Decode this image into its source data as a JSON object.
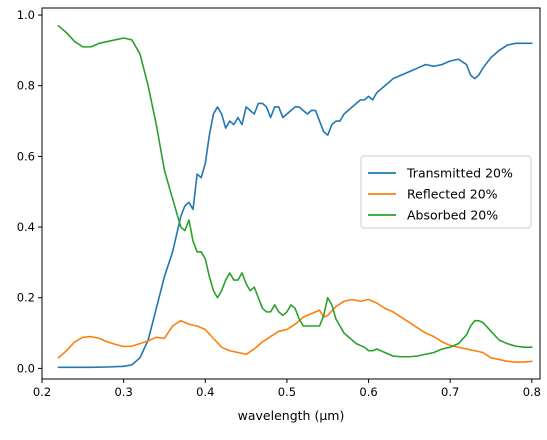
{
  "chart_data": {
    "type": "line",
    "title": "",
    "xlabel": "wavelength (μm)",
    "ylabel": "",
    "xlim": [
      0.2,
      0.81
    ],
    "ylim": [
      -0.03,
      1.02
    ],
    "xticks": [
      0.2,
      0.3,
      0.4,
      0.5,
      0.6,
      0.7,
      0.8
    ],
    "xtick_labels": [
      "0.2",
      "0.3",
      "0.4",
      "0.5",
      "0.6",
      "0.7",
      "0.8"
    ],
    "yticks": [
      0.0,
      0.2,
      0.4,
      0.6,
      0.8,
      1.0
    ],
    "ytick_labels": [
      "0.0",
      "0.2",
      "0.4",
      "0.6",
      "0.8",
      "1.0"
    ],
    "grid": false,
    "legend_position": "center-right",
    "series": [
      {
        "name": "Transmitted 20%",
        "color": "#1f77b4",
        "x": [
          0.22,
          0.24,
          0.26,
          0.28,
          0.3,
          0.31,
          0.32,
          0.33,
          0.34,
          0.35,
          0.36,
          0.37,
          0.375,
          0.38,
          0.385,
          0.39,
          0.395,
          0.4,
          0.405,
          0.41,
          0.415,
          0.42,
          0.425,
          0.43,
          0.435,
          0.44,
          0.445,
          0.45,
          0.455,
          0.46,
          0.465,
          0.47,
          0.475,
          0.48,
          0.485,
          0.49,
          0.495,
          0.5,
          0.505,
          0.51,
          0.515,
          0.52,
          0.525,
          0.53,
          0.535,
          0.54,
          0.545,
          0.55,
          0.555,
          0.56,
          0.565,
          0.57,
          0.575,
          0.58,
          0.585,
          0.59,
          0.595,
          0.6,
          0.605,
          0.61,
          0.62,
          0.63,
          0.64,
          0.65,
          0.66,
          0.67,
          0.68,
          0.69,
          0.7,
          0.71,
          0.72,
          0.725,
          0.73,
          0.735,
          0.74,
          0.75,
          0.76,
          0.77,
          0.78,
          0.79,
          0.8
        ],
        "y": [
          0.003,
          0.003,
          0.003,
          0.004,
          0.006,
          0.01,
          0.03,
          0.08,
          0.17,
          0.26,
          0.33,
          0.43,
          0.46,
          0.47,
          0.45,
          0.55,
          0.54,
          0.58,
          0.66,
          0.72,
          0.74,
          0.72,
          0.68,
          0.7,
          0.69,
          0.71,
          0.69,
          0.74,
          0.73,
          0.72,
          0.75,
          0.75,
          0.74,
          0.71,
          0.74,
          0.74,
          0.71,
          0.72,
          0.73,
          0.74,
          0.74,
          0.73,
          0.72,
          0.73,
          0.73,
          0.7,
          0.67,
          0.66,
          0.69,
          0.7,
          0.7,
          0.72,
          0.73,
          0.74,
          0.75,
          0.76,
          0.76,
          0.77,
          0.76,
          0.78,
          0.8,
          0.82,
          0.83,
          0.84,
          0.85,
          0.86,
          0.855,
          0.86,
          0.87,
          0.875,
          0.86,
          0.83,
          0.82,
          0.83,
          0.85,
          0.88,
          0.9,
          0.915,
          0.92,
          0.92,
          0.92
        ]
      },
      {
        "name": "Reflected 20%",
        "color": "#ff7f0e",
        "x": [
          0.22,
          0.23,
          0.24,
          0.25,
          0.26,
          0.27,
          0.28,
          0.29,
          0.3,
          0.31,
          0.32,
          0.33,
          0.34,
          0.35,
          0.36,
          0.37,
          0.38,
          0.39,
          0.4,
          0.41,
          0.42,
          0.43,
          0.44,
          0.45,
          0.46,
          0.47,
          0.48,
          0.49,
          0.5,
          0.51,
          0.52,
          0.53,
          0.54,
          0.545,
          0.55,
          0.56,
          0.57,
          0.58,
          0.59,
          0.6,
          0.61,
          0.62,
          0.63,
          0.64,
          0.65,
          0.66,
          0.67,
          0.68,
          0.69,
          0.7,
          0.71,
          0.72,
          0.73,
          0.74,
          0.75,
          0.76,
          0.77,
          0.78,
          0.79,
          0.8
        ],
        "y": [
          0.03,
          0.05,
          0.075,
          0.088,
          0.09,
          0.085,
          0.075,
          0.068,
          0.062,
          0.063,
          0.07,
          0.078,
          0.088,
          0.085,
          0.12,
          0.135,
          0.125,
          0.12,
          0.11,
          0.085,
          0.06,
          0.05,
          0.045,
          0.04,
          0.055,
          0.075,
          0.09,
          0.105,
          0.11,
          0.125,
          0.145,
          0.155,
          0.165,
          0.145,
          0.15,
          0.175,
          0.19,
          0.195,
          0.19,
          0.195,
          0.185,
          0.17,
          0.16,
          0.145,
          0.13,
          0.115,
          0.1,
          0.09,
          0.075,
          0.065,
          0.06,
          0.055,
          0.05,
          0.045,
          0.03,
          0.025,
          0.02,
          0.018,
          0.018,
          0.02
        ]
      },
      {
        "name": "Absorbed 20%",
        "color": "#2ca02c",
        "x": [
          0.22,
          0.23,
          0.24,
          0.25,
          0.26,
          0.27,
          0.28,
          0.29,
          0.3,
          0.31,
          0.32,
          0.33,
          0.34,
          0.35,
          0.36,
          0.37,
          0.375,
          0.38,
          0.385,
          0.39,
          0.395,
          0.4,
          0.405,
          0.41,
          0.415,
          0.42,
          0.425,
          0.43,
          0.435,
          0.44,
          0.445,
          0.45,
          0.455,
          0.46,
          0.465,
          0.47,
          0.475,
          0.48,
          0.485,
          0.49,
          0.495,
          0.5,
          0.505,
          0.51,
          0.515,
          0.52,
          0.525,
          0.53,
          0.535,
          0.54,
          0.545,
          0.55,
          0.555,
          0.56,
          0.565,
          0.57,
          0.575,
          0.58,
          0.585,
          0.59,
          0.595,
          0.6,
          0.605,
          0.61,
          0.62,
          0.63,
          0.64,
          0.65,
          0.66,
          0.67,
          0.68,
          0.69,
          0.7,
          0.71,
          0.72,
          0.725,
          0.73,
          0.735,
          0.74,
          0.75,
          0.76,
          0.77,
          0.78,
          0.79,
          0.8
        ],
        "y": [
          0.97,
          0.95,
          0.925,
          0.91,
          0.91,
          0.92,
          0.925,
          0.93,
          0.935,
          0.93,
          0.89,
          0.8,
          0.69,
          0.56,
          0.48,
          0.4,
          0.39,
          0.42,
          0.36,
          0.33,
          0.33,
          0.31,
          0.26,
          0.22,
          0.2,
          0.22,
          0.25,
          0.27,
          0.25,
          0.25,
          0.27,
          0.24,
          0.22,
          0.23,
          0.2,
          0.17,
          0.16,
          0.16,
          0.18,
          0.16,
          0.15,
          0.16,
          0.18,
          0.17,
          0.14,
          0.12,
          0.12,
          0.12,
          0.12,
          0.12,
          0.15,
          0.2,
          0.18,
          0.14,
          0.12,
          0.1,
          0.09,
          0.08,
          0.07,
          0.065,
          0.06,
          0.05,
          0.05,
          0.055,
          0.045,
          0.035,
          0.033,
          0.033,
          0.035,
          0.04,
          0.045,
          0.055,
          0.06,
          0.07,
          0.095,
          0.12,
          0.135,
          0.135,
          0.13,
          0.105,
          0.08,
          0.07,
          0.063,
          0.06,
          0.06
        ]
      }
    ]
  }
}
